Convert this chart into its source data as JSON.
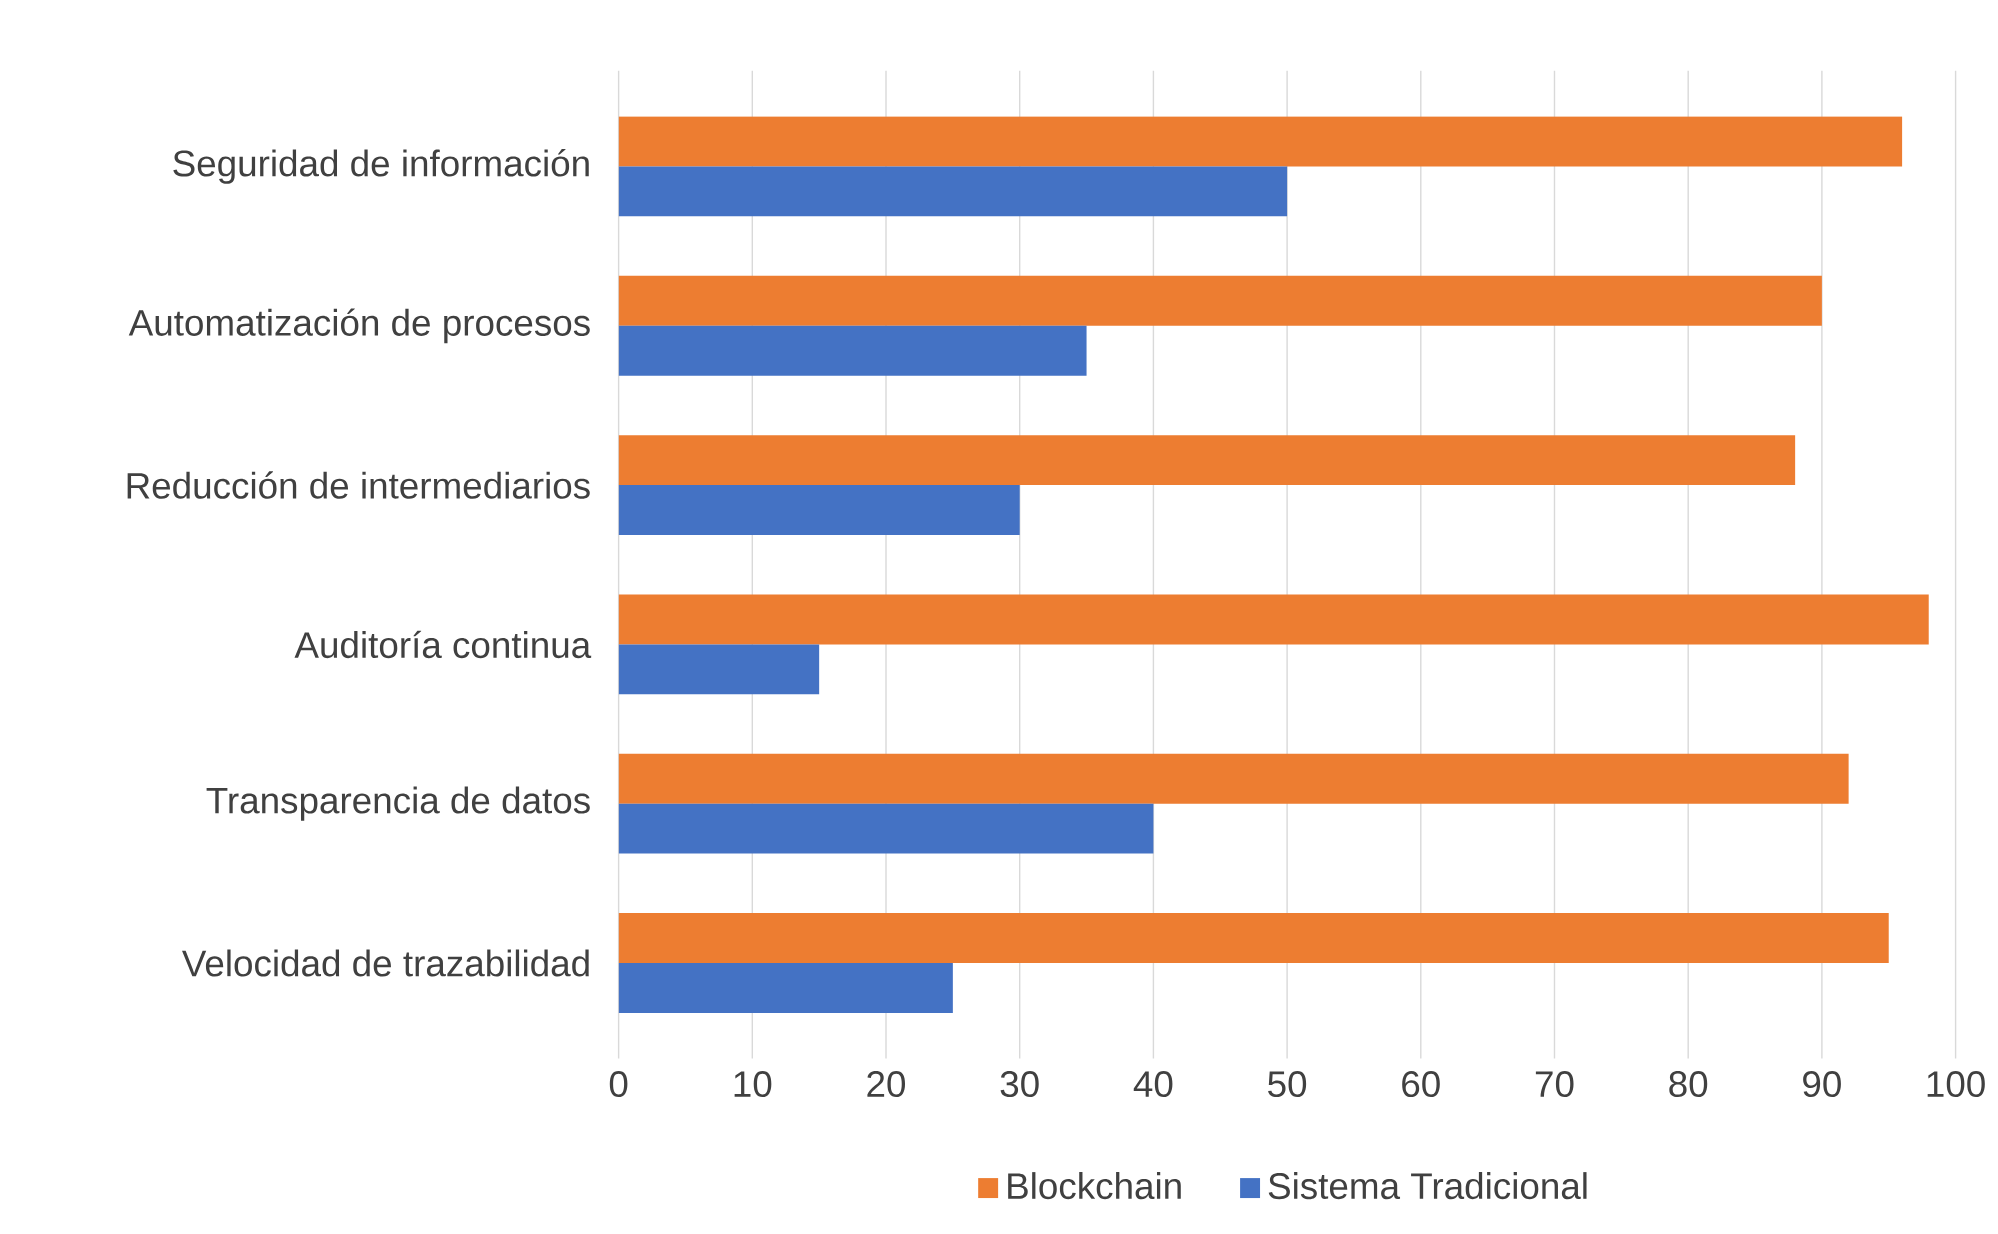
{
  "chart_data": {
    "type": "bar",
    "orientation": "horizontal",
    "categories": [
      "Seguridad de información",
      "Automatización de procesos",
      "Reducción de intermediarios",
      "Auditoría continua",
      "Transparencia de datos",
      "Velocidad de trazabilidad"
    ],
    "series": [
      {
        "name": "Blockchain",
        "color": "#ed7d31",
        "values": [
          96,
          90,
          88,
          98,
          92,
          95
        ]
      },
      {
        "name": "Sistema Tradicional",
        "color": "#4472c4",
        "values": [
          50,
          35,
          30,
          15,
          40,
          25
        ]
      }
    ],
    "xlim": [
      0,
      100
    ],
    "xticks": [
      0,
      10,
      20,
      30,
      40,
      50,
      60,
      70,
      80,
      90,
      100
    ],
    "grid": "x",
    "legend": "bottom"
  }
}
